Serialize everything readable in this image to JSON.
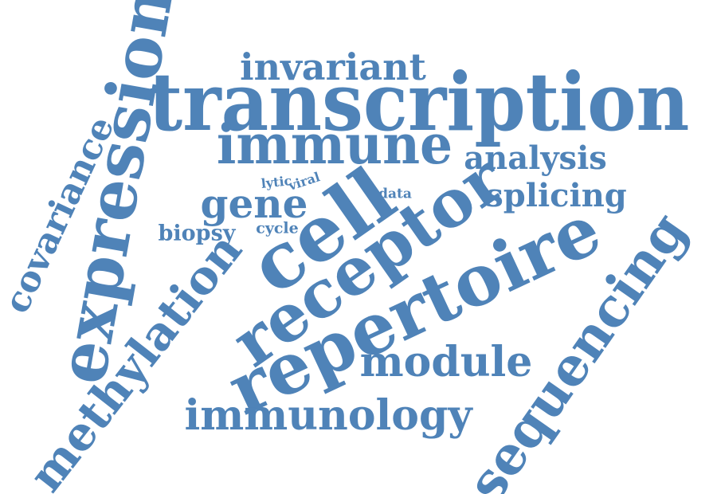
{
  "word_cloud": {
    "color": "#4f83b8",
    "words": {
      "transcription": "transcription",
      "repertoire": "repertoire",
      "receptor": "receptor",
      "cell": "cell",
      "expression": "expression",
      "sequencing": "sequencing",
      "methylation": "methylation",
      "immune": "immune",
      "immunology": "immunology",
      "module": "module",
      "covariance": "covariance",
      "invariant": "invariant",
      "analysis": "analysis",
      "splicing": "splicing",
      "gene": "gene",
      "biopsy": "biopsy",
      "cycle": "cycle",
      "data": "data",
      "lytic": "lytic",
      "viral": "viral"
    }
  }
}
